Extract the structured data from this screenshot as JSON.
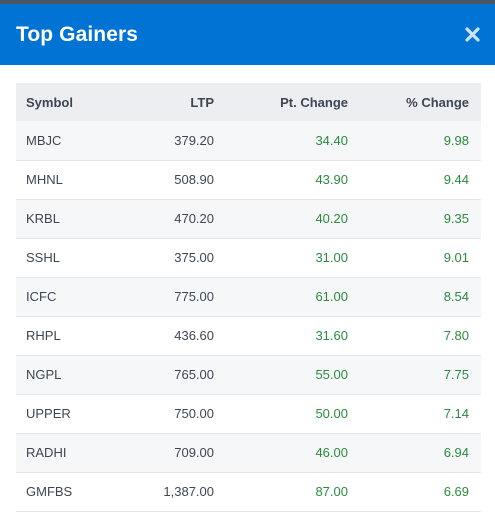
{
  "header": {
    "title": "Top Gainers",
    "close_icon": "close-icon"
  },
  "table": {
    "columns": [
      "Symbol",
      "LTP",
      "Pt. Change",
      "% Change"
    ],
    "rows": [
      {
        "symbol": "MBJC",
        "ltp": "379.20",
        "pt_change": "34.40",
        "pct_change": "9.98"
      },
      {
        "symbol": "MHNL",
        "ltp": "508.90",
        "pt_change": "43.90",
        "pct_change": "9.44"
      },
      {
        "symbol": "KRBL",
        "ltp": "470.20",
        "pt_change": "40.20",
        "pct_change": "9.35"
      },
      {
        "symbol": "SSHL",
        "ltp": "375.00",
        "pt_change": "31.00",
        "pct_change": "9.01"
      },
      {
        "symbol": "ICFC",
        "ltp": "775.00",
        "pt_change": "61.00",
        "pct_change": "8.54"
      },
      {
        "symbol": "RHPL",
        "ltp": "436.60",
        "pt_change": "31.60",
        "pct_change": "7.80"
      },
      {
        "symbol": "NGPL",
        "ltp": "765.00",
        "pt_change": "55.00",
        "pct_change": "7.75"
      },
      {
        "symbol": "UPPER",
        "ltp": "750.00",
        "pt_change": "50.00",
        "pct_change": "7.14"
      },
      {
        "symbol": "RADHI",
        "ltp": "709.00",
        "pt_change": "46.00",
        "pct_change": "6.94"
      },
      {
        "symbol": "GMFBS",
        "ltp": "1,387.00",
        "pt_change": "87.00",
        "pct_change": "6.69"
      }
    ]
  },
  "colors": {
    "header_bg": "#0073d4",
    "gain_text": "#2b8a3e",
    "text": "#3d4653"
  }
}
